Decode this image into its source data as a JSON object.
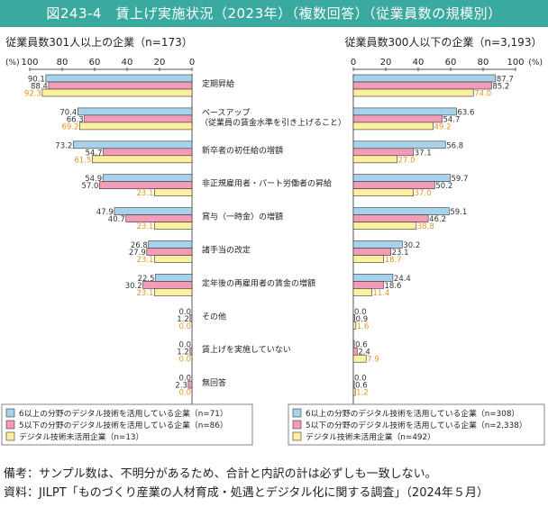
{
  "figure_title": "図243-4　賃上げ実施状況（2023年）（複数回答）（従業員数の規模別）",
  "colors": {
    "s1": "#a6d2ec",
    "s2": "#f39cb7",
    "s3": "#fdf0a0",
    "s3_label": "#e8951f",
    "edge": "#333333",
    "accent": "#3aa9a0"
  },
  "chart_data": [
    {
      "type": "bar",
      "orientation": "horizontal",
      "direction": "right-to-left",
      "title": "従業員数301人以上の企業（n=173）",
      "axis_unit": "(%)",
      "xlim": [
        0,
        100
      ],
      "ticks": [
        "100",
        "80",
        "60",
        "40",
        "20",
        "0"
      ],
      "categories": [
        "定期昇給",
        "ベースアップ（従業員の賃金水準を引き上げること）",
        "新卒者の初任給の増額",
        "非正規雇用者・パート労働者の昇給",
        "賞与（一時金）の増額",
        "諸手当の改定",
        "定年後の再雇用者の賃金の増額",
        "その他",
        "賃上げを実施していない",
        "無回答"
      ],
      "series": [
        {
          "name": "6以上の分野のデジタル技術を活用している企業（n=71）",
          "values": [
            90.1,
            70.4,
            73.2,
            54.9,
            47.9,
            26.8,
            22.5,
            0.0,
            0.0,
            0.0
          ],
          "labels": [
            "90.1",
            "70.4",
            "73.2",
            "54.9",
            "47.9",
            "26.8",
            "22.5",
            "0.0",
            "0.0",
            "0.0"
          ]
        },
        {
          "name": "5以下の分野のデジタル技術を活用している企業（n=86）",
          "values": [
            88.4,
            66.3,
            54.7,
            57.0,
            40.7,
            27.9,
            30.2,
            1.2,
            1.2,
            2.3
          ],
          "labels": [
            "88.4",
            "66.3",
            "54.7",
            "57.0",
            "40.7",
            "27.9",
            "30.2",
            "1.2",
            "1.2",
            "2.3"
          ]
        },
        {
          "name": "デジタル技術未活用企業（n=13）",
          "values": [
            92.3,
            69.2,
            61.5,
            23.1,
            23.1,
            23.1,
            23.1,
            0.0,
            0.0,
            0.0
          ],
          "labels": [
            "92.3",
            "69.2",
            "61.5",
            "23.1",
            "23.1",
            "23.1",
            "23.1",
            "0.0",
            "0.0",
            "0.0"
          ]
        }
      ]
    },
    {
      "type": "bar",
      "orientation": "horizontal",
      "direction": "left-to-right",
      "title": "従業員数300人以下の企業（n=3,193）",
      "axis_unit": "(%)",
      "xlim": [
        0,
        100
      ],
      "ticks": [
        "0",
        "20",
        "40",
        "60",
        "80",
        "100"
      ],
      "series": [
        {
          "name": "6以上の分野のデジタル技術を活用している企業（n=308）",
          "values": [
            87.7,
            63.6,
            56.8,
            59.7,
            59.1,
            30.2,
            24.4,
            0.0,
            0.6,
            0.0
          ],
          "labels": [
            "87.7",
            "63.6",
            "56.8",
            "59.7",
            "59.1",
            "30.2",
            "24.4",
            "0.0",
            "0.6",
            "0.0"
          ]
        },
        {
          "name": "5以下の分野のデジタル技術を活用している企業（n=2,338）",
          "values": [
            85.2,
            54.7,
            37.1,
            50.2,
            46.2,
            23.1,
            18.6,
            0.9,
            2.4,
            0.6
          ],
          "labels": [
            "85.2",
            "54.7",
            "37.1",
            "50.2",
            "46.2",
            "23.1",
            "18.6",
            "0.9",
            "2.4",
            "0.6"
          ]
        },
        {
          "name": "デジタル技術未活用企業（n=492）",
          "values": [
            74.0,
            49.2,
            27.0,
            37.0,
            38.8,
            18.7,
            11.4,
            1.6,
            7.9,
            1.2
          ],
          "labels": [
            "74.0",
            "49.2",
            "27.0",
            "37.0",
            "38.8",
            "18.7",
            "11.4",
            "1.6",
            "7.9",
            "1.2"
          ]
        }
      ]
    }
  ],
  "notes": {
    "remark": "備考：サンプル数は、不明分があるため、合計と内訳の計は必ずしも一致しない。",
    "source": "資料：JILPT「ものづくり産業の人材育成・処遇とデジタル化に関する調査」（2024年５月）"
  }
}
